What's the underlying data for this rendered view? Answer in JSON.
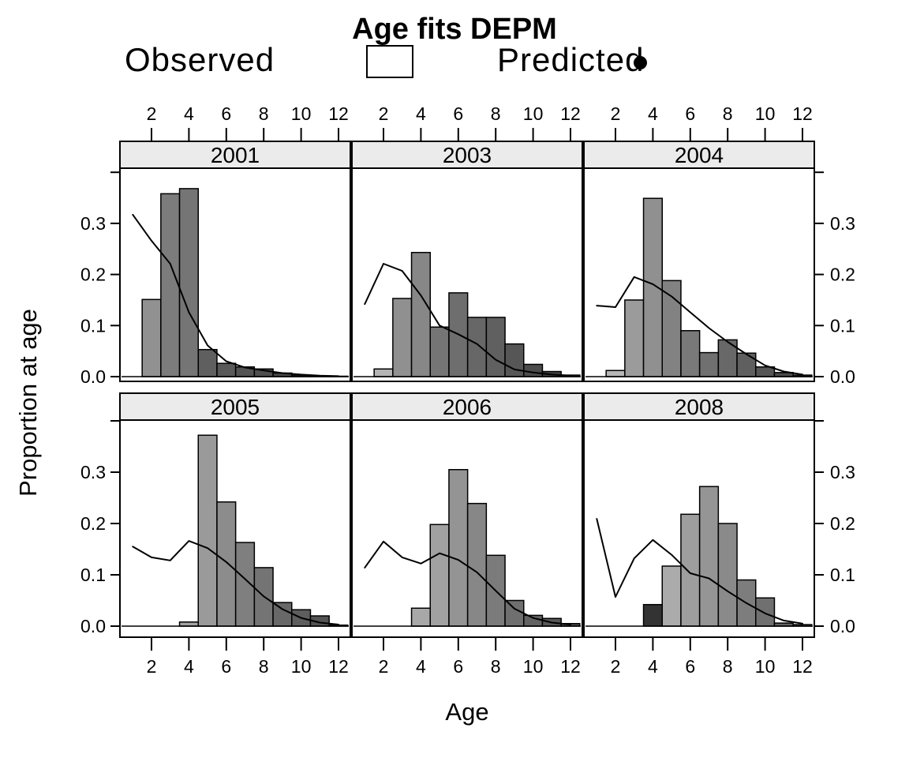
{
  "title": "Age fits DEPM",
  "legend": {
    "observed_label": "Observed",
    "predicted_label": "Predicted"
  },
  "xlabel": "Age",
  "ylabel": "Proportion at age",
  "colors": {
    "background": "#ffffff",
    "strip_bg": "#ebebeb",
    "panel_border": "#000000",
    "bar_stroke": "#000000",
    "predicted_line": "#000000"
  },
  "axes": {
    "x_tick_labels": [
      "2",
      "4",
      "6",
      "8",
      "10",
      "12"
    ],
    "x_tick_values": [
      2,
      4,
      6,
      8,
      10,
      12
    ],
    "y_tick_labels": [
      "0.0",
      "0.1",
      "0.2",
      "0.3"
    ],
    "y_tick_values": [
      0.0,
      0.1,
      0.2,
      0.3
    ],
    "y_extra_tick_value": 0.4,
    "x_range": [
      0.3,
      12.7
    ],
    "y_range": [
      -0.01,
      0.41
    ]
  },
  "chart_data": {
    "type": "bar",
    "layout_hint": "2x3 trellis panels, histogram bars = Observed, black line = Predicted, grid off, legend top",
    "panels": [
      {
        "year": "2001",
        "bars": {
          "ages": [
            2,
            3,
            4,
            5,
            6,
            7,
            8,
            9,
            10,
            11,
            12
          ],
          "values": [
            0.151,
            0.358,
            0.368,
            0.053,
            0.026,
            0.019,
            0.015,
            0.007,
            0.003,
            0.0015,
            0.0008
          ],
          "fills": [
            "#919191",
            "#7c7c7c",
            "#757575",
            "#5f5f5f",
            "#595959",
            "#535353",
            "#4e4e4e",
            "#474747",
            "#404040",
            "#3b3b3b",
            "#363636"
          ]
        },
        "line": {
          "ages": [
            1,
            2,
            3,
            4,
            5,
            6,
            7,
            8,
            9,
            10,
            11,
            12
          ],
          "values": [
            0.317,
            0.266,
            0.221,
            0.126,
            0.061,
            0.03,
            0.018,
            0.012,
            0.007,
            0.004,
            0.002,
            0.001
          ]
        }
      },
      {
        "year": "2003",
        "bars": {
          "ages": [
            2,
            3,
            4,
            5,
            6,
            7,
            8,
            9,
            10,
            11,
            12
          ],
          "values": [
            0.015,
            0.153,
            0.243,
            0.097,
            0.164,
            0.116,
            0.116,
            0.064,
            0.024,
            0.01,
            0.003
          ],
          "fills": [
            "#b4b4b4",
            "#909090",
            "#878787",
            "#757575",
            "#6e6e6e",
            "#676767",
            "#606060",
            "#565656",
            "#4c4c4c",
            "#424242",
            "#393939"
          ]
        },
        "line": {
          "ages": [
            1,
            2,
            3,
            4,
            5,
            6,
            7,
            8,
            9,
            10,
            11,
            12
          ],
          "values": [
            0.142,
            0.221,
            0.207,
            0.159,
            0.1,
            0.083,
            0.064,
            0.033,
            0.014,
            0.008,
            0.004,
            0.002
          ]
        }
      },
      {
        "year": "2004",
        "bars": {
          "ages": [
            2,
            3,
            4,
            5,
            6,
            7,
            8,
            9,
            10,
            11,
            12
          ],
          "values": [
            0.012,
            0.15,
            0.349,
            0.188,
            0.09,
            0.047,
            0.072,
            0.046,
            0.019,
            0.008,
            0.003
          ],
          "fills": [
            "#b6b6b6",
            "#9b9b9b",
            "#909090",
            "#828282",
            "#797979",
            "#707070",
            "#686868",
            "#5f5f5f",
            "#555555",
            "#4a4a4a",
            "#3f3f3f"
          ]
        },
        "line": {
          "ages": [
            1,
            2,
            3,
            4,
            5,
            6,
            7,
            8,
            9,
            10,
            11,
            12
          ],
          "values": [
            0.139,
            0.136,
            0.195,
            0.181,
            0.157,
            0.126,
            0.095,
            0.068,
            0.044,
            0.022,
            0.01,
            0.004
          ]
        }
      },
      {
        "year": "2005",
        "bars": {
          "ages": [
            4,
            5,
            6,
            7,
            8,
            9,
            10,
            11,
            12
          ],
          "values": [
            0.008,
            0.372,
            0.242,
            0.163,
            0.114,
            0.046,
            0.032,
            0.02,
            0.002
          ],
          "fills": [
            "#a2a2a2",
            "#9a9a9a",
            "#8c8c8c",
            "#7f7f7f",
            "#747474",
            "#686868",
            "#5e5e5e",
            "#535353",
            "#494949"
          ]
        },
        "line": {
          "ages": [
            1,
            2,
            3,
            4,
            5,
            6,
            7,
            8,
            9,
            10,
            11,
            12
          ],
          "values": [
            0.155,
            0.134,
            0.128,
            0.166,
            0.152,
            0.125,
            0.092,
            0.058,
            0.033,
            0.016,
            0.007,
            0.003
          ]
        }
      },
      {
        "year": "2006",
        "bars": {
          "ages": [
            4,
            5,
            6,
            7,
            8,
            9,
            10,
            11,
            12
          ],
          "values": [
            0.035,
            0.198,
            0.305,
            0.239,
            0.138,
            0.05,
            0.021,
            0.015,
            0.005
          ],
          "fills": [
            "#a8a8a8",
            "#a1a1a1",
            "#949494",
            "#878787",
            "#7b7b7b",
            "#6f6f6f",
            "#636363",
            "#585858",
            "#4d4d4d"
          ]
        },
        "line": {
          "ages": [
            1,
            2,
            3,
            4,
            5,
            6,
            7,
            8,
            9,
            10,
            11,
            12
          ],
          "values": [
            0.114,
            0.165,
            0.134,
            0.122,
            0.142,
            0.129,
            0.105,
            0.069,
            0.034,
            0.016,
            0.007,
            0.003
          ]
        }
      },
      {
        "year": "2008",
        "bars": {
          "ages": [
            4,
            5,
            6,
            7,
            8,
            9,
            10,
            11,
            12
          ],
          "values": [
            0.042,
            0.117,
            0.218,
            0.272,
            0.2,
            0.09,
            0.055,
            0.006,
            0.003
          ],
          "fills": [
            "#333333",
            "#ababab",
            "#9e9e9e",
            "#959595",
            "#8a8a8a",
            "#7d7d7d",
            "#707070",
            "#626262",
            "#575757"
          ]
        },
        "line": {
          "ages": [
            1,
            2,
            3,
            4,
            5,
            6,
            7,
            8,
            9,
            10,
            11,
            12
          ],
          "values": [
            0.209,
            0.057,
            0.132,
            0.168,
            0.139,
            0.103,
            0.093,
            0.068,
            0.045,
            0.025,
            0.011,
            0.005
          ]
        }
      }
    ]
  }
}
